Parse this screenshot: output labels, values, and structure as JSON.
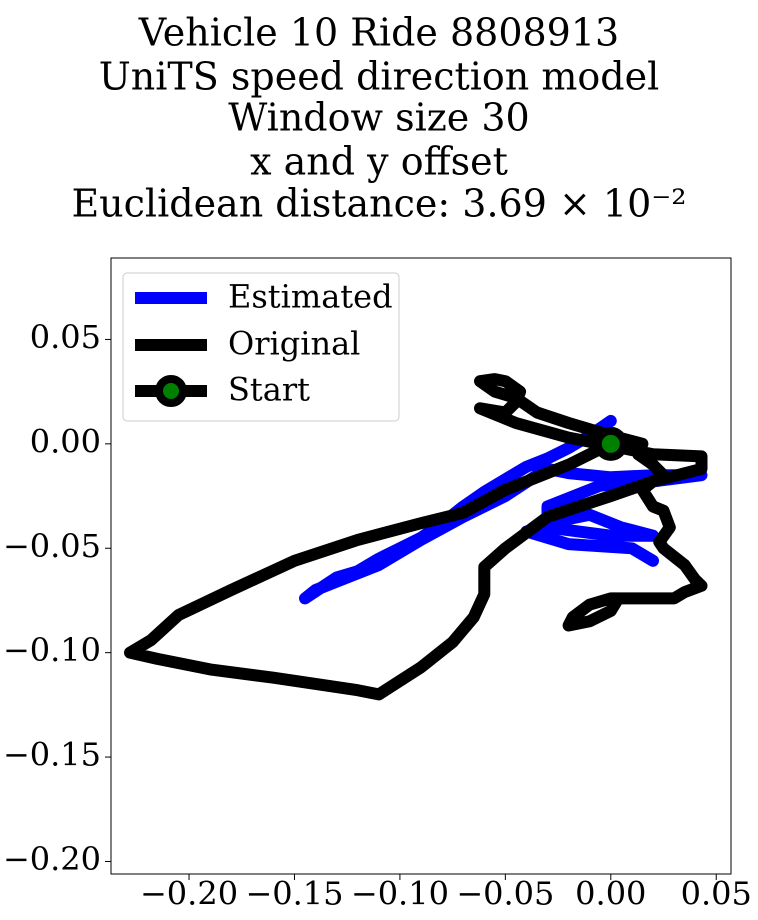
{
  "chart_data": {
    "type": "line",
    "title_lines": [
      "Vehicle 10 Ride 8808913",
      "UniTS speed direction model",
      "Window size 30",
      "x and y offset",
      "Euclidean distance: 3.69 × 10⁻²"
    ],
    "xlabel": "",
    "ylabel": "",
    "xlim": [
      -0.237,
      0.057
    ],
    "ylim": [
      -0.206,
      0.089
    ],
    "xticks": [
      {
        "value": -0.2,
        "label": "−0.20"
      },
      {
        "value": -0.15,
        "label": "−0.15"
      },
      {
        "value": -0.1,
        "label": "−0.10"
      },
      {
        "value": -0.05,
        "label": "−0.05"
      },
      {
        "value": 0.0,
        "label": "0.00"
      },
      {
        "value": 0.05,
        "label": "0.05"
      }
    ],
    "yticks": [
      {
        "value": 0.05,
        "label": "0.05"
      },
      {
        "value": 0.0,
        "label": "0.00"
      },
      {
        "value": -0.05,
        "label": "−0.05"
      },
      {
        "value": -0.1,
        "label": "−0.10"
      },
      {
        "value": -0.15,
        "label": "−0.15"
      },
      {
        "value": -0.2,
        "label": "−0.20"
      }
    ],
    "grid": false,
    "legend_position": "top-left",
    "series": [
      {
        "name": "Estimated",
        "color": "#0000ff",
        "x": [
          0.0,
          -0.01,
          -0.02,
          -0.03,
          -0.04,
          -0.05,
          -0.06,
          -0.07,
          -0.08,
          -0.09,
          -0.1,
          -0.11,
          -0.12,
          -0.13,
          -0.145,
          -0.14,
          -0.13,
          -0.11,
          -0.09,
          -0.07,
          -0.05,
          -0.035,
          -0.03,
          -0.02,
          0.0,
          0.02,
          0.043,
          0.02,
          -0.005,
          -0.03,
          -0.03,
          -0.01,
          0.005,
          0.02,
          0.0,
          -0.03,
          -0.04,
          -0.02,
          0.01,
          0.02
        ],
        "y": [
          0.011,
          0.004,
          -0.002,
          -0.007,
          -0.011,
          -0.017,
          -0.023,
          -0.03,
          -0.038,
          -0.045,
          -0.05,
          -0.055,
          -0.061,
          -0.064,
          -0.074,
          -0.07,
          -0.066,
          -0.058,
          -0.046,
          -0.035,
          -0.025,
          -0.015,
          -0.012,
          -0.014,
          -0.016,
          -0.015,
          -0.015,
          -0.018,
          -0.02,
          -0.03,
          -0.038,
          -0.034,
          -0.04,
          -0.044,
          -0.044,
          -0.04,
          -0.042,
          -0.048,
          -0.05,
          -0.056
        ]
      },
      {
        "name": "Original",
        "color": "#000000",
        "x": [
          0.0,
          -0.01,
          -0.02,
          -0.03,
          -0.05,
          -0.07,
          -0.09,
          -0.12,
          -0.15,
          -0.18,
          -0.205,
          -0.218,
          -0.228,
          -0.215,
          -0.19,
          -0.16,
          -0.12,
          -0.11,
          -0.09,
          -0.075,
          -0.065,
          -0.06,
          -0.06,
          -0.05,
          -0.03,
          0.0,
          0.02,
          0.043,
          0.043,
          0.02,
          0.0,
          -0.02,
          -0.045,
          -0.062,
          -0.05,
          -0.045,
          -0.043,
          -0.05,
          -0.055,
          -0.062,
          -0.055,
          -0.045,
          -0.035,
          -0.02,
          0.0,
          0.015,
          0.013,
          0.02,
          0.025,
          0.02,
          0.015,
          0.02,
          0.025,
          0.028,
          0.023,
          0.025,
          0.035,
          0.04,
          0.043,
          0.035,
          0.03,
          0.022,
          0.01,
          0.0,
          -0.01,
          -0.018,
          -0.02,
          -0.01,
          0.0,
          0.003
        ],
        "y": [
          0.0,
          -0.005,
          -0.01,
          -0.014,
          -0.022,
          -0.033,
          -0.038,
          -0.046,
          -0.056,
          -0.07,
          -0.082,
          -0.094,
          -0.1,
          -0.103,
          -0.108,
          -0.112,
          -0.118,
          -0.12,
          -0.107,
          -0.095,
          -0.083,
          -0.072,
          -0.059,
          -0.05,
          -0.035,
          -0.025,
          -0.018,
          -0.012,
          -0.006,
          -0.005,
          -0.001,
          0.003,
          0.01,
          0.017,
          0.015,
          0.02,
          0.025,
          0.03,
          0.031,
          0.03,
          0.025,
          0.022,
          0.015,
          0.01,
          0.004,
          0.0,
          -0.005,
          -0.01,
          -0.015,
          -0.018,
          -0.022,
          -0.03,
          -0.032,
          -0.04,
          -0.047,
          -0.05,
          -0.058,
          -0.065,
          -0.068,
          -0.071,
          -0.074,
          -0.074,
          -0.074,
          -0.074,
          -0.077,
          -0.083,
          -0.087,
          -0.085,
          -0.08,
          -0.075
        ]
      }
    ],
    "start_point": {
      "name": "Start",
      "x": 0.0,
      "y": 0.0,
      "edge_color": "#000000",
      "fill_color": "#008000"
    }
  }
}
